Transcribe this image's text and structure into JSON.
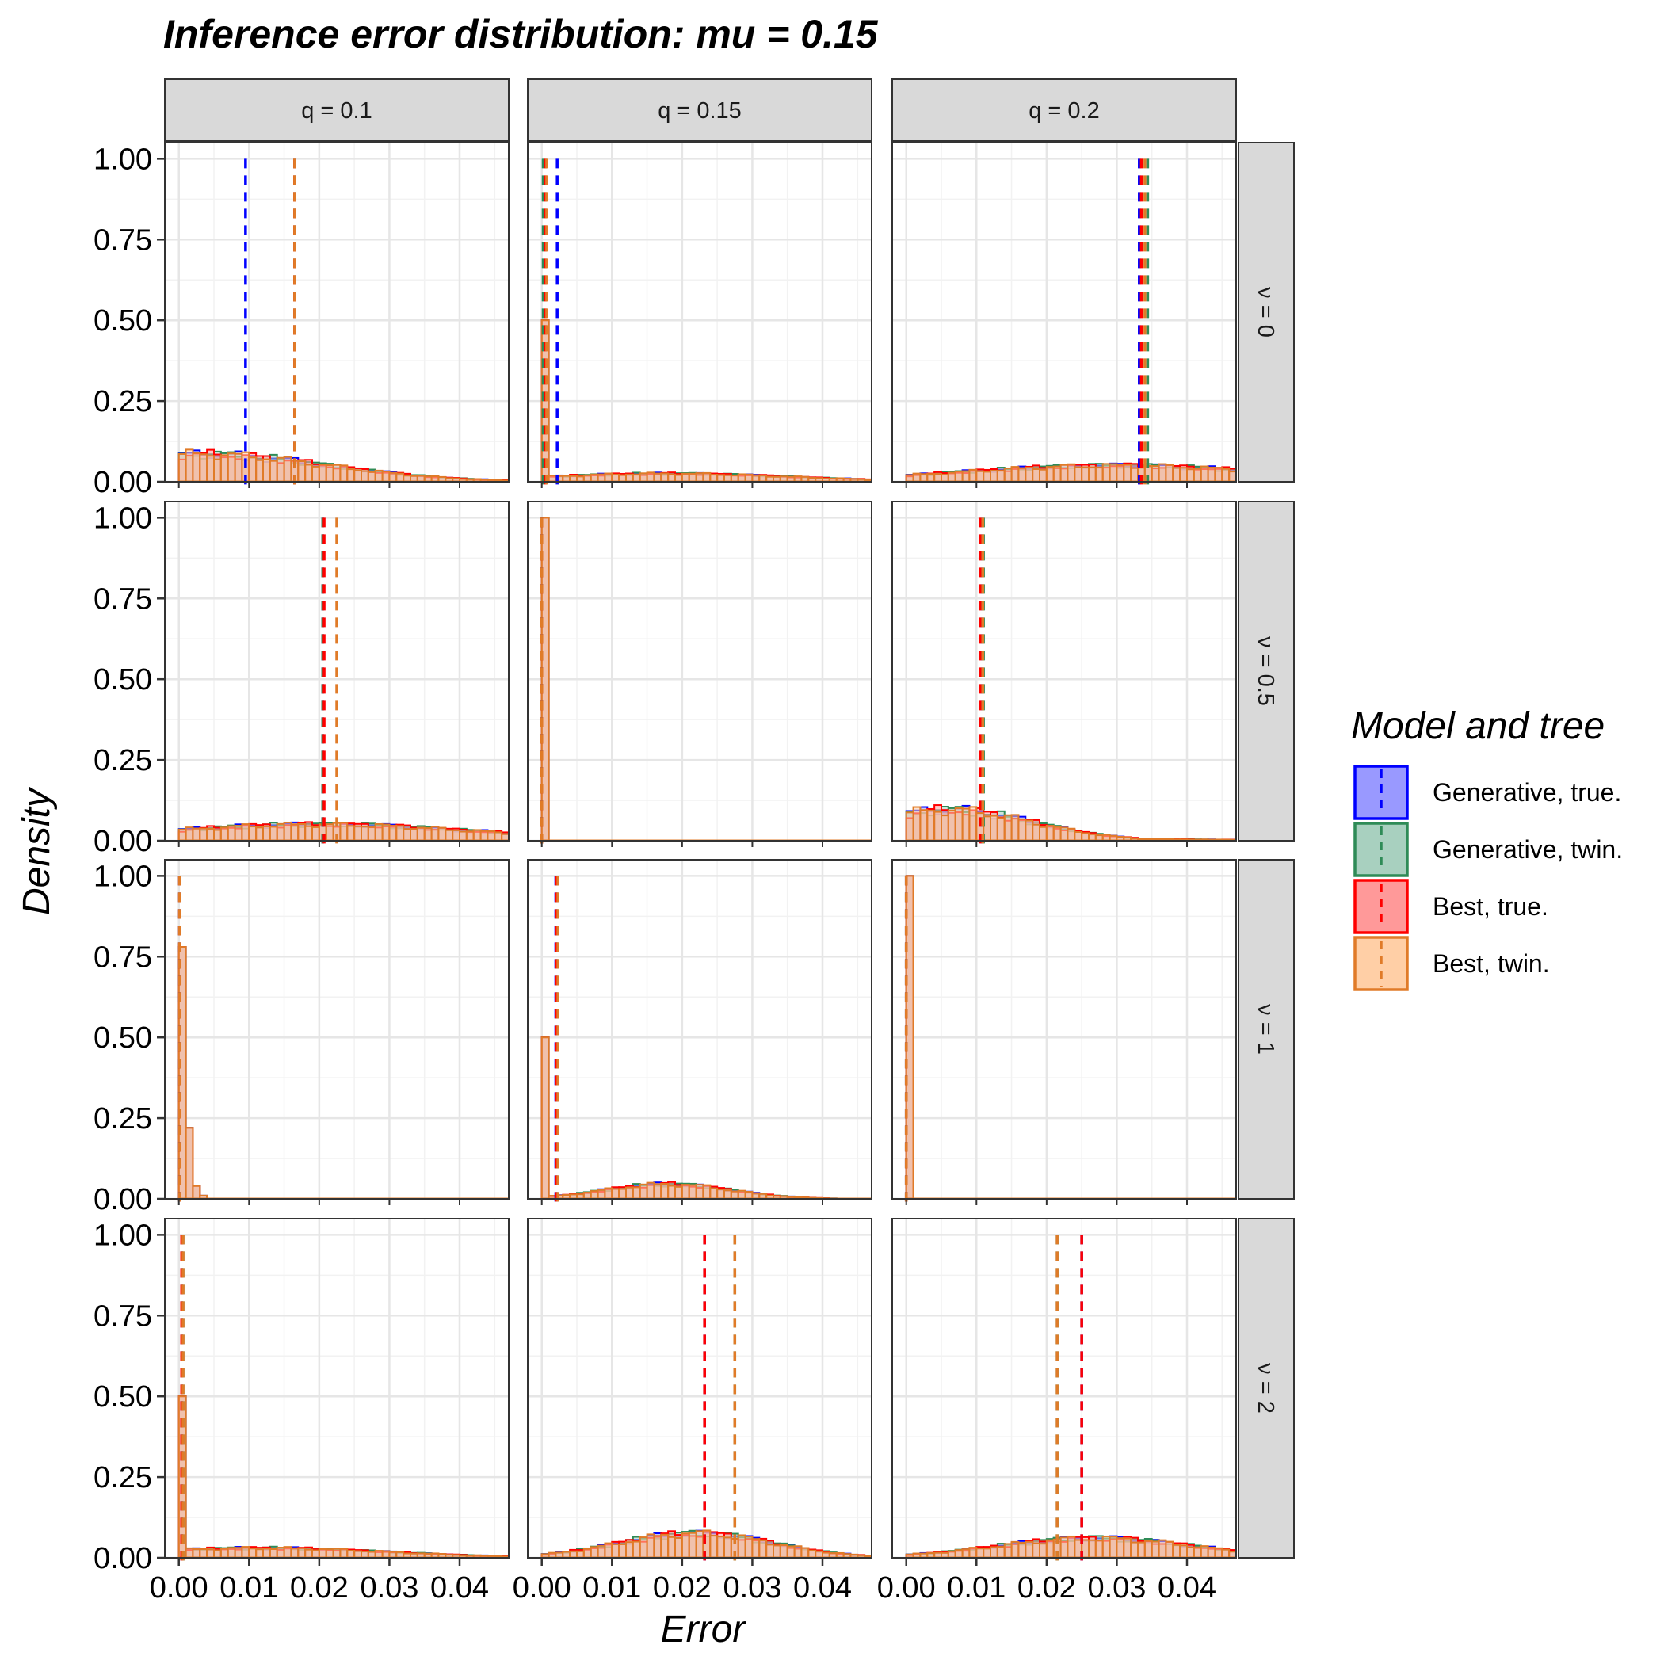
{
  "chart_data": {
    "type": "histogram-facet",
    "title": "Inference error distribution: mu = 0.15",
    "xlabel": "Error",
    "ylabel": "Density",
    "xlim": [
      -0.002,
      0.047
    ],
    "ylim": [
      0,
      1.05
    ],
    "x_ticks": [
      0.0,
      0.01,
      0.02,
      0.03,
      0.04
    ],
    "x_tick_labels": [
      "0.00",
      "0.01",
      "0.02",
      "0.03",
      "0.04"
    ],
    "y_ticks": [
      0.0,
      0.25,
      0.5,
      0.75,
      1.0
    ],
    "y_tick_labels": [
      "0.00",
      "0.25",
      "0.50",
      "0.75",
      "1.00"
    ],
    "grid": true,
    "col_strips": [
      "q = 0.1",
      "q = 0.15",
      "q = 0.2"
    ],
    "row_strips": [
      "ν = 0",
      "ν = 0.5",
      "ν = 1",
      "ν = 2"
    ],
    "legend": {
      "title": "Model and tree",
      "position": "right",
      "items": [
        {
          "label": "Generative, true.",
          "color": "#0000ff",
          "fill": "#9999ff"
        },
        {
          "label": "Generative, twin.",
          "color": "#2e8b57",
          "fill": "#a8d0bf"
        },
        {
          "label": "Best, true.",
          "color": "#ff0000",
          "fill": "#ff9999"
        },
        {
          "label": "Best, twin.",
          "color": "#e07b28",
          "fill": "#ffcfa6"
        }
      ]
    },
    "panels": [
      {
        "row": 0,
        "col": 0,
        "profile": "spread",
        "peak_x": 0.003,
        "peak_y": 0.085,
        "width": 0.018,
        "spike": 0,
        "vlines": [
          0.0095,
          0.0165,
          0.0165,
          0.0165
        ]
      },
      {
        "row": 0,
        "col": 1,
        "profile": "spike_hump",
        "peak_x": 0.018,
        "peak_y": 0.025,
        "width": 0.018,
        "spike": 0.5,
        "vlines": [
          0.0022,
          0.0002,
          0.0005,
          0.0007
        ]
      },
      {
        "row": 0,
        "col": 2,
        "profile": "spread",
        "peak_x": 0.03,
        "peak_y": 0.05,
        "width": 0.022,
        "spike": 0,
        "vlines": [
          0.0332,
          0.0344,
          0.0335,
          0.034
        ]
      },
      {
        "row": 1,
        "col": 0,
        "profile": "spread",
        "peak_x": 0.02,
        "peak_y": 0.05,
        "width": 0.022,
        "spike": 0,
        "vlines": [
          0.0205,
          0.0205,
          0.0207,
          0.0225
        ]
      },
      {
        "row": 1,
        "col": 1,
        "profile": "spike",
        "peak_x": 0,
        "peak_y": 0,
        "width": 0.01,
        "spike": 1.0,
        "vlines": [
          0.0,
          0.0,
          0.0,
          0.0
        ]
      },
      {
        "row": 1,
        "col": 2,
        "profile": "spread",
        "peak_x": 0.006,
        "peak_y": 0.095,
        "width": 0.012,
        "spike": 0,
        "vlines": [
          0.0108,
          0.011,
          0.0105,
          0.0109
        ]
      },
      {
        "row": 2,
        "col": 0,
        "profile": "decay",
        "peak_x": 0,
        "peak_y": 0.78,
        "width": 0.002,
        "spike": 0,
        "vlines": [
          0.0001,
          0.0001,
          0.0001,
          0.0001
        ]
      },
      {
        "row": 2,
        "col": 1,
        "profile": "spike_hump",
        "peak_x": 0.018,
        "peak_y": 0.045,
        "width": 0.009,
        "spike": 0.5,
        "vlines": [
          0.002,
          0.0022,
          0.0021,
          0.0023
        ]
      },
      {
        "row": 2,
        "col": 2,
        "profile": "spike",
        "peak_x": 0,
        "peak_y": 0,
        "width": 0.01,
        "spike": 1.0,
        "vlines": [
          0.0,
          0.0,
          0.0,
          0.0
        ]
      },
      {
        "row": 3,
        "col": 0,
        "profile": "spike_hump",
        "peak_x": 0.012,
        "peak_y": 0.03,
        "width": 0.018,
        "spike": 0.5,
        "vlines": [
          0.0004,
          0.0006,
          0.0004,
          0.0006
        ]
      },
      {
        "row": 3,
        "col": 1,
        "profile": "spread",
        "peak_x": 0.022,
        "peak_y": 0.075,
        "width": 0.011,
        "spike": 0,
        "vlines": [
          0.0232,
          0.0275,
          0.0232,
          0.0275
        ]
      },
      {
        "row": 3,
        "col": 2,
        "profile": "spread",
        "peak_x": 0.027,
        "peak_y": 0.06,
        "width": 0.014,
        "spike": 0,
        "vlines": [
          0.025,
          0.0215,
          0.025,
          0.0215
        ]
      }
    ]
  }
}
